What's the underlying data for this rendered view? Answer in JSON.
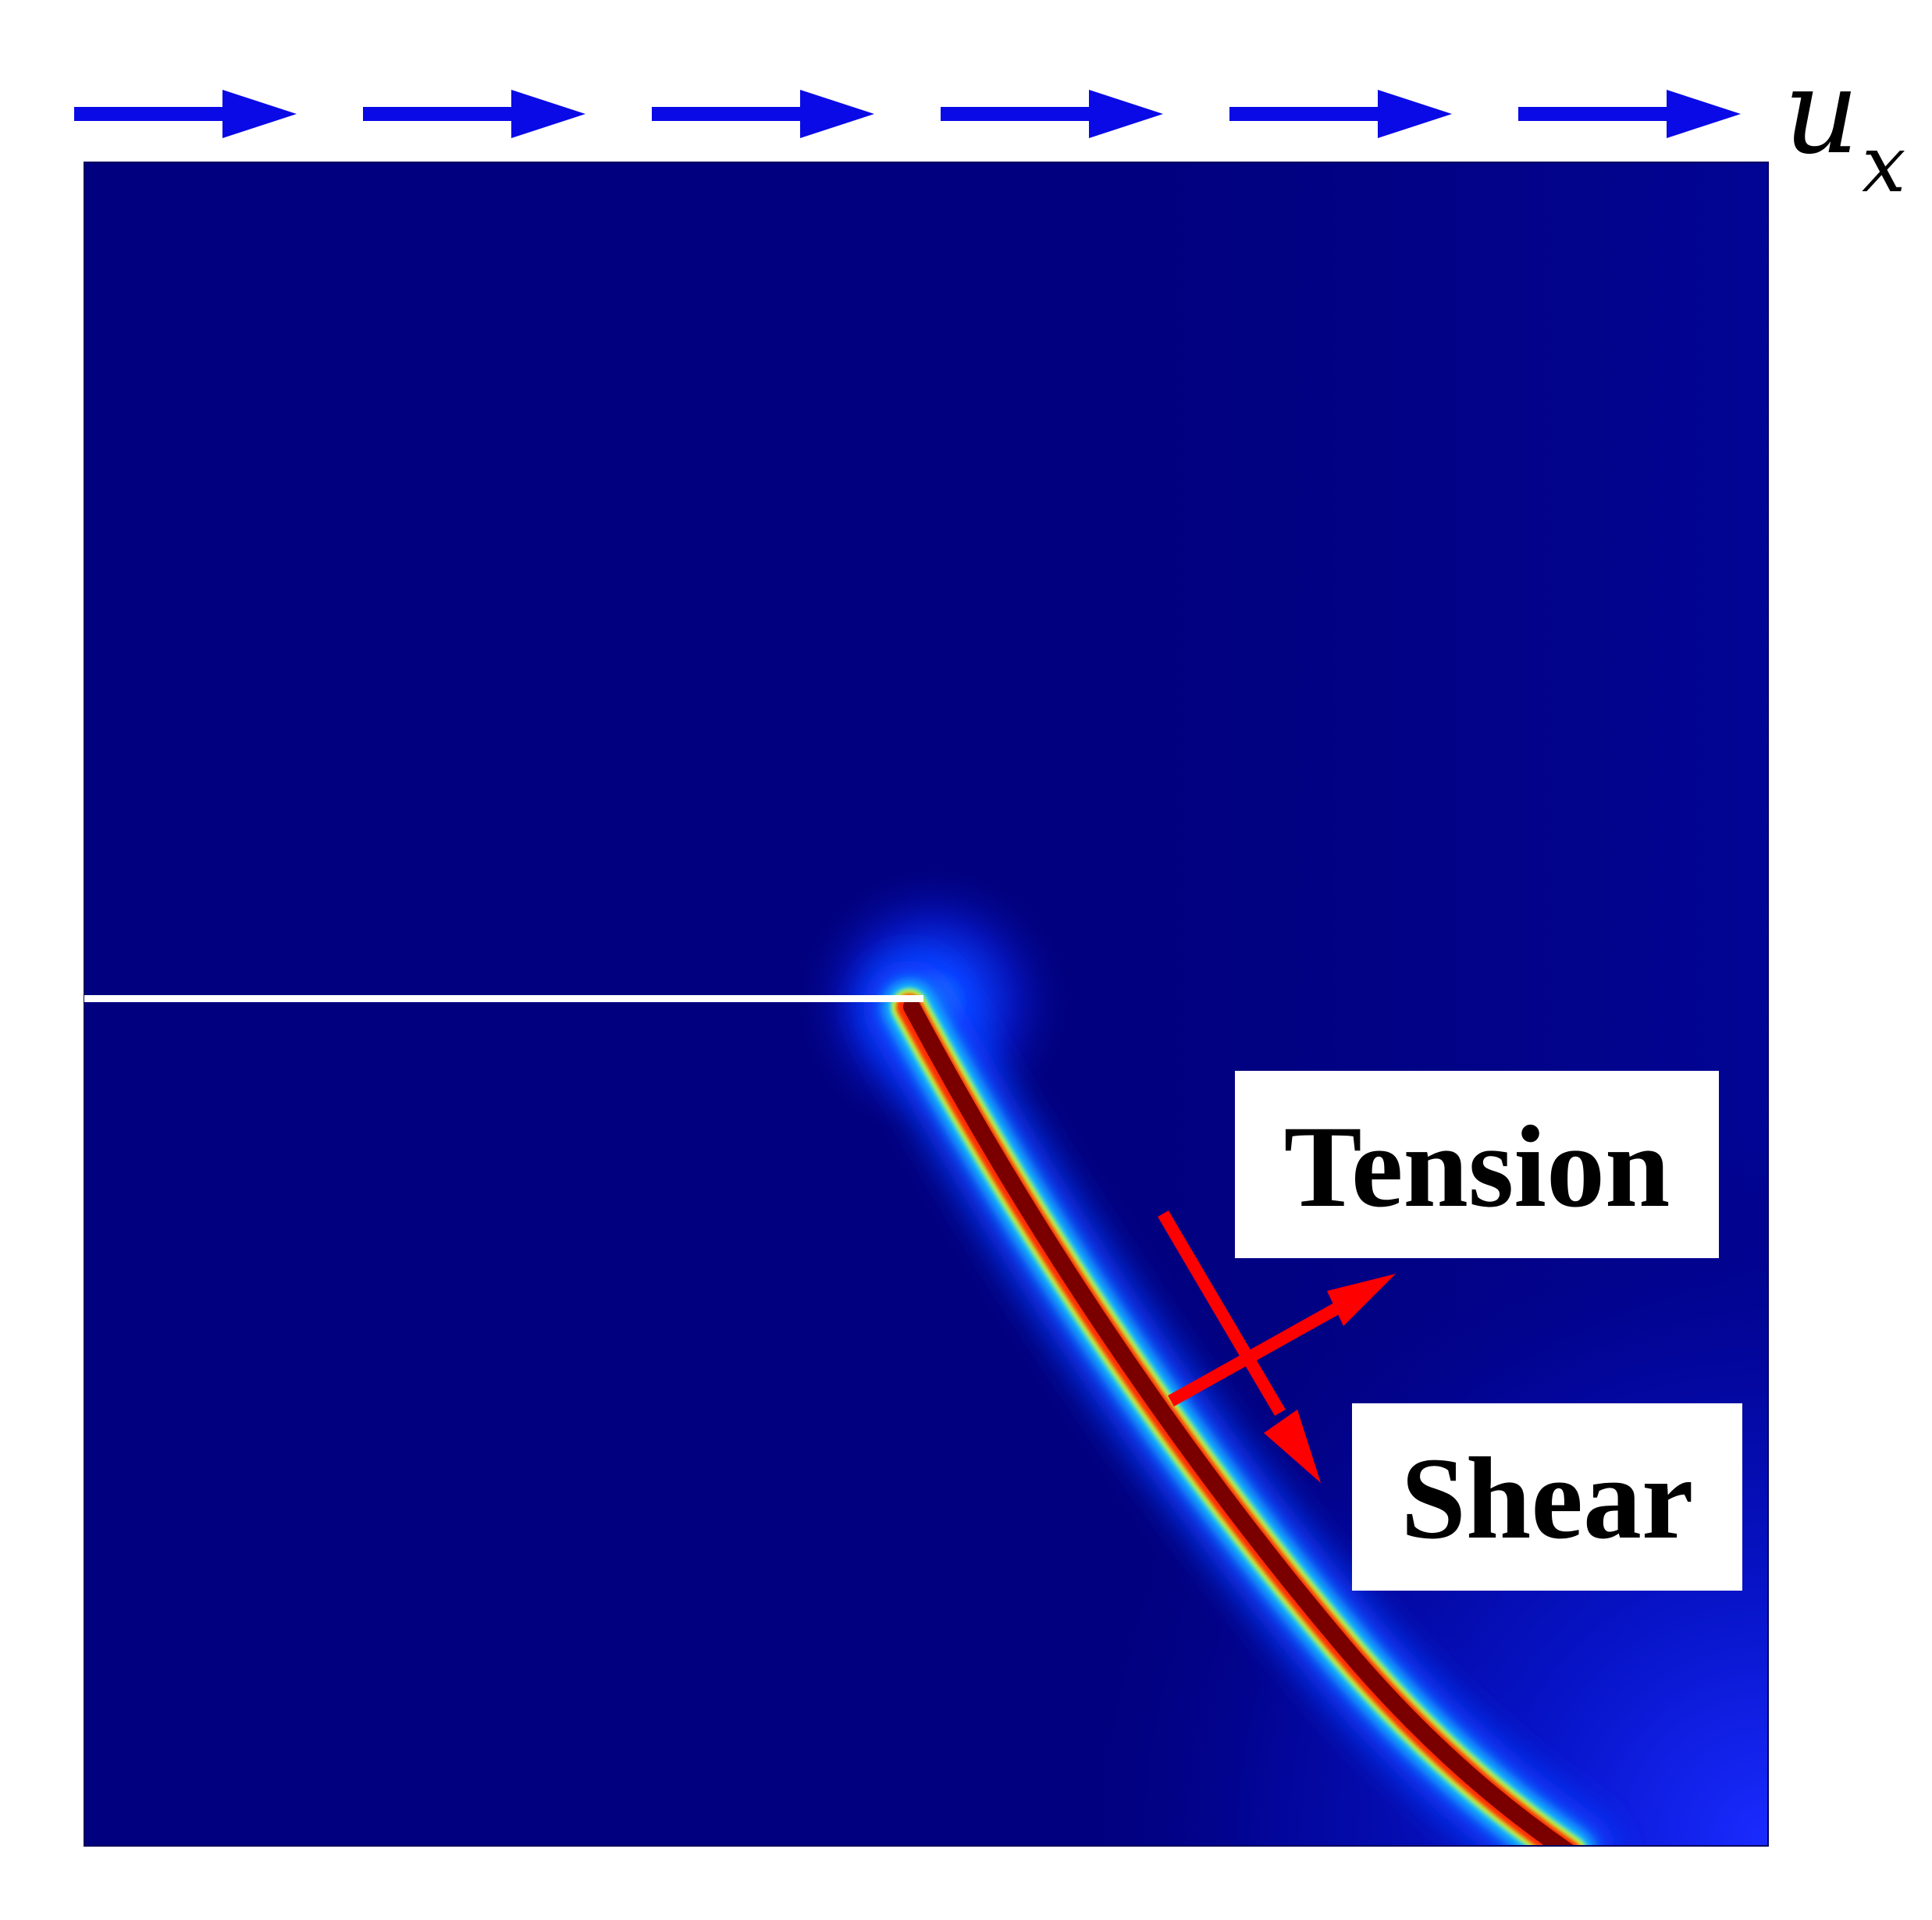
{
  "labels": {
    "load_symbol": "u",
    "load_subscript": "x",
    "tension": "Tension",
    "shear": "Shear"
  },
  "colors": {
    "background_field": "#01017f",
    "load_arrows": "#0a0ae6",
    "crack_core": "#7a0000",
    "annotation_arrows": "#ff0000",
    "pre_crack": "#ffffff",
    "label_box": "#ffffff"
  },
  "load_arrows": {
    "count": 6,
    "direction": "right"
  }
}
